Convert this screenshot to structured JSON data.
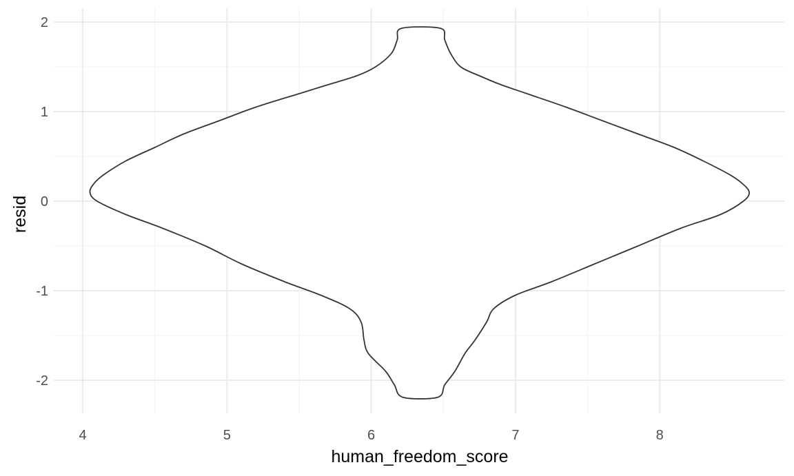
{
  "chart_data": {
    "type": "violin",
    "xlabel": "human_freedom_score",
    "ylabel": "resid",
    "xlim": [
      3.83,
      8.87
    ],
    "ylim": [
      -2.35,
      2.07
    ],
    "x_ticks": [
      4,
      5,
      6,
      7,
      8
    ],
    "y_ticks": [
      -2,
      -1,
      0,
      1,
      2
    ],
    "x_tick_labels": [
      "4",
      "5",
      "6",
      "7",
      "8"
    ],
    "y_tick_labels": [
      "-2",
      "-1",
      "0",
      "1",
      "2"
    ],
    "grid": true,
    "colors": {
      "outline": "#333333",
      "fill": "#ffffff",
      "grid_major": "#ebebeb",
      "grid_minor": "#f3f3f3"
    },
    "violin": {
      "center_x": 6.34,
      "outline": [
        {
          "y": 1.93,
          "x_left": 6.21,
          "x_right": 6.48
        },
        {
          "y": 1.8,
          "x_left": 6.18,
          "x_right": 6.51
        },
        {
          "y": 1.65,
          "x_left": 6.14,
          "x_right": 6.55
        },
        {
          "y": 1.5,
          "x_left": 6.03,
          "x_right": 6.62
        },
        {
          "y": 1.4,
          "x_left": 5.9,
          "x_right": 6.75
        },
        {
          "y": 1.3,
          "x_left": 5.7,
          "x_right": 6.9
        },
        {
          "y": 1.2,
          "x_left": 5.5,
          "x_right": 7.08
        },
        {
          "y": 1.05,
          "x_left": 5.2,
          "x_right": 7.35
        },
        {
          "y": 0.9,
          "x_left": 4.95,
          "x_right": 7.6
        },
        {
          "y": 0.75,
          "x_left": 4.7,
          "x_right": 7.85
        },
        {
          "y": 0.6,
          "x_left": 4.5,
          "x_right": 8.1
        },
        {
          "y": 0.45,
          "x_left": 4.3,
          "x_right": 8.3
        },
        {
          "y": 0.3,
          "x_left": 4.15,
          "x_right": 8.48
        },
        {
          "y": 0.2,
          "x_left": 4.08,
          "x_right": 8.57
        },
        {
          "y": 0.1,
          "x_left": 4.05,
          "x_right": 8.62
        },
        {
          "y": 0.0,
          "x_left": 4.1,
          "x_right": 8.58
        },
        {
          "y": -0.15,
          "x_left": 4.3,
          "x_right": 8.42
        },
        {
          "y": -0.3,
          "x_left": 4.55,
          "x_right": 8.15
        },
        {
          "y": -0.5,
          "x_left": 4.85,
          "x_right": 7.85
        },
        {
          "y": -0.7,
          "x_left": 5.1,
          "x_right": 7.55
        },
        {
          "y": -0.9,
          "x_left": 5.4,
          "x_right": 7.25
        },
        {
          "y": -1.05,
          "x_left": 5.65,
          "x_right": 7.0
        },
        {
          "y": -1.2,
          "x_left": 5.85,
          "x_right": 6.85
        },
        {
          "y": -1.35,
          "x_left": 5.93,
          "x_right": 6.8
        },
        {
          "y": -1.55,
          "x_left": 5.95,
          "x_right": 6.72
        },
        {
          "y": -1.7,
          "x_left": 5.98,
          "x_right": 6.65
        },
        {
          "y": -1.9,
          "x_left": 6.1,
          "x_right": 6.58
        },
        {
          "y": -2.05,
          "x_left": 6.16,
          "x_right": 6.51
        },
        {
          "y": -2.19,
          "x_left": 6.22,
          "x_right": 6.46
        }
      ]
    }
  }
}
